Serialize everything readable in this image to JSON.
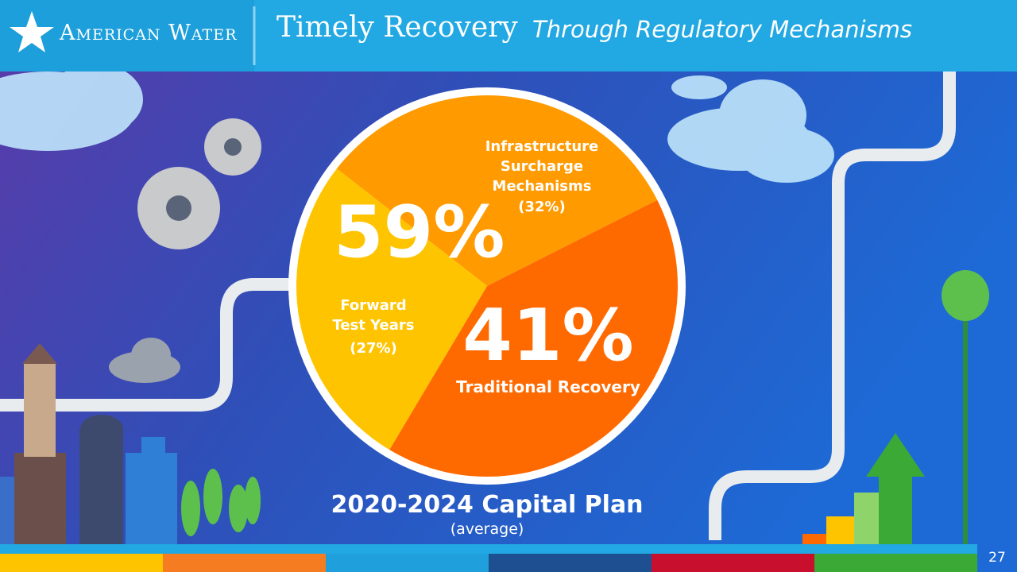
{
  "header": {
    "logo": "American Water",
    "title": "Timely Recovery",
    "subtitle": "Through Regulatory Mechanisms"
  },
  "page_number": 27,
  "chart_data": {
    "type": "pie",
    "title": "2020-2024 Capital Plan",
    "subtitle": "(average)",
    "categories": [
      "Infrastructure Surcharge Mechanisms",
      "Traditional Recovery",
      "Forward Test Years"
    ],
    "values": [
      32,
      41,
      27
    ],
    "value_labels": [
      "(32%)",
      "41%",
      "(27%)"
    ],
    "colors": [
      "#ff9a00",
      "#ff6a00",
      "#ffc400"
    ],
    "annotations": [
      "59%"
    ]
  }
}
